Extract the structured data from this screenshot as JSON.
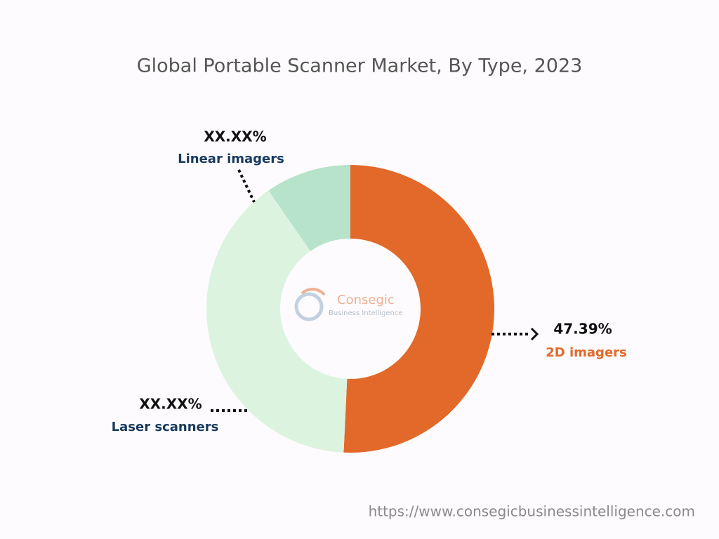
{
  "chart_data": {
    "type": "donut",
    "title": "Global Portable Scanner Market, By Type, 2023",
    "categories": [
      "2D imagers",
      "Laser scanners",
      "Linear imagers"
    ],
    "values": [
      47.39,
      37,
      9
    ],
    "value_labels": [
      "47.39%",
      "XX.XX%",
      "XX.XX%"
    ],
    "colors": [
      "#e2692a",
      "#dcf3e0",
      "#b8e3cb"
    ],
    "label_colors": [
      "#e2692a",
      "#173a5e",
      "#173a5e"
    ]
  },
  "watermark": {
    "name": "Consegic",
    "tagline": "Business Intelligence"
  },
  "source": "https://www.consegicbusinessintelligence.com"
}
